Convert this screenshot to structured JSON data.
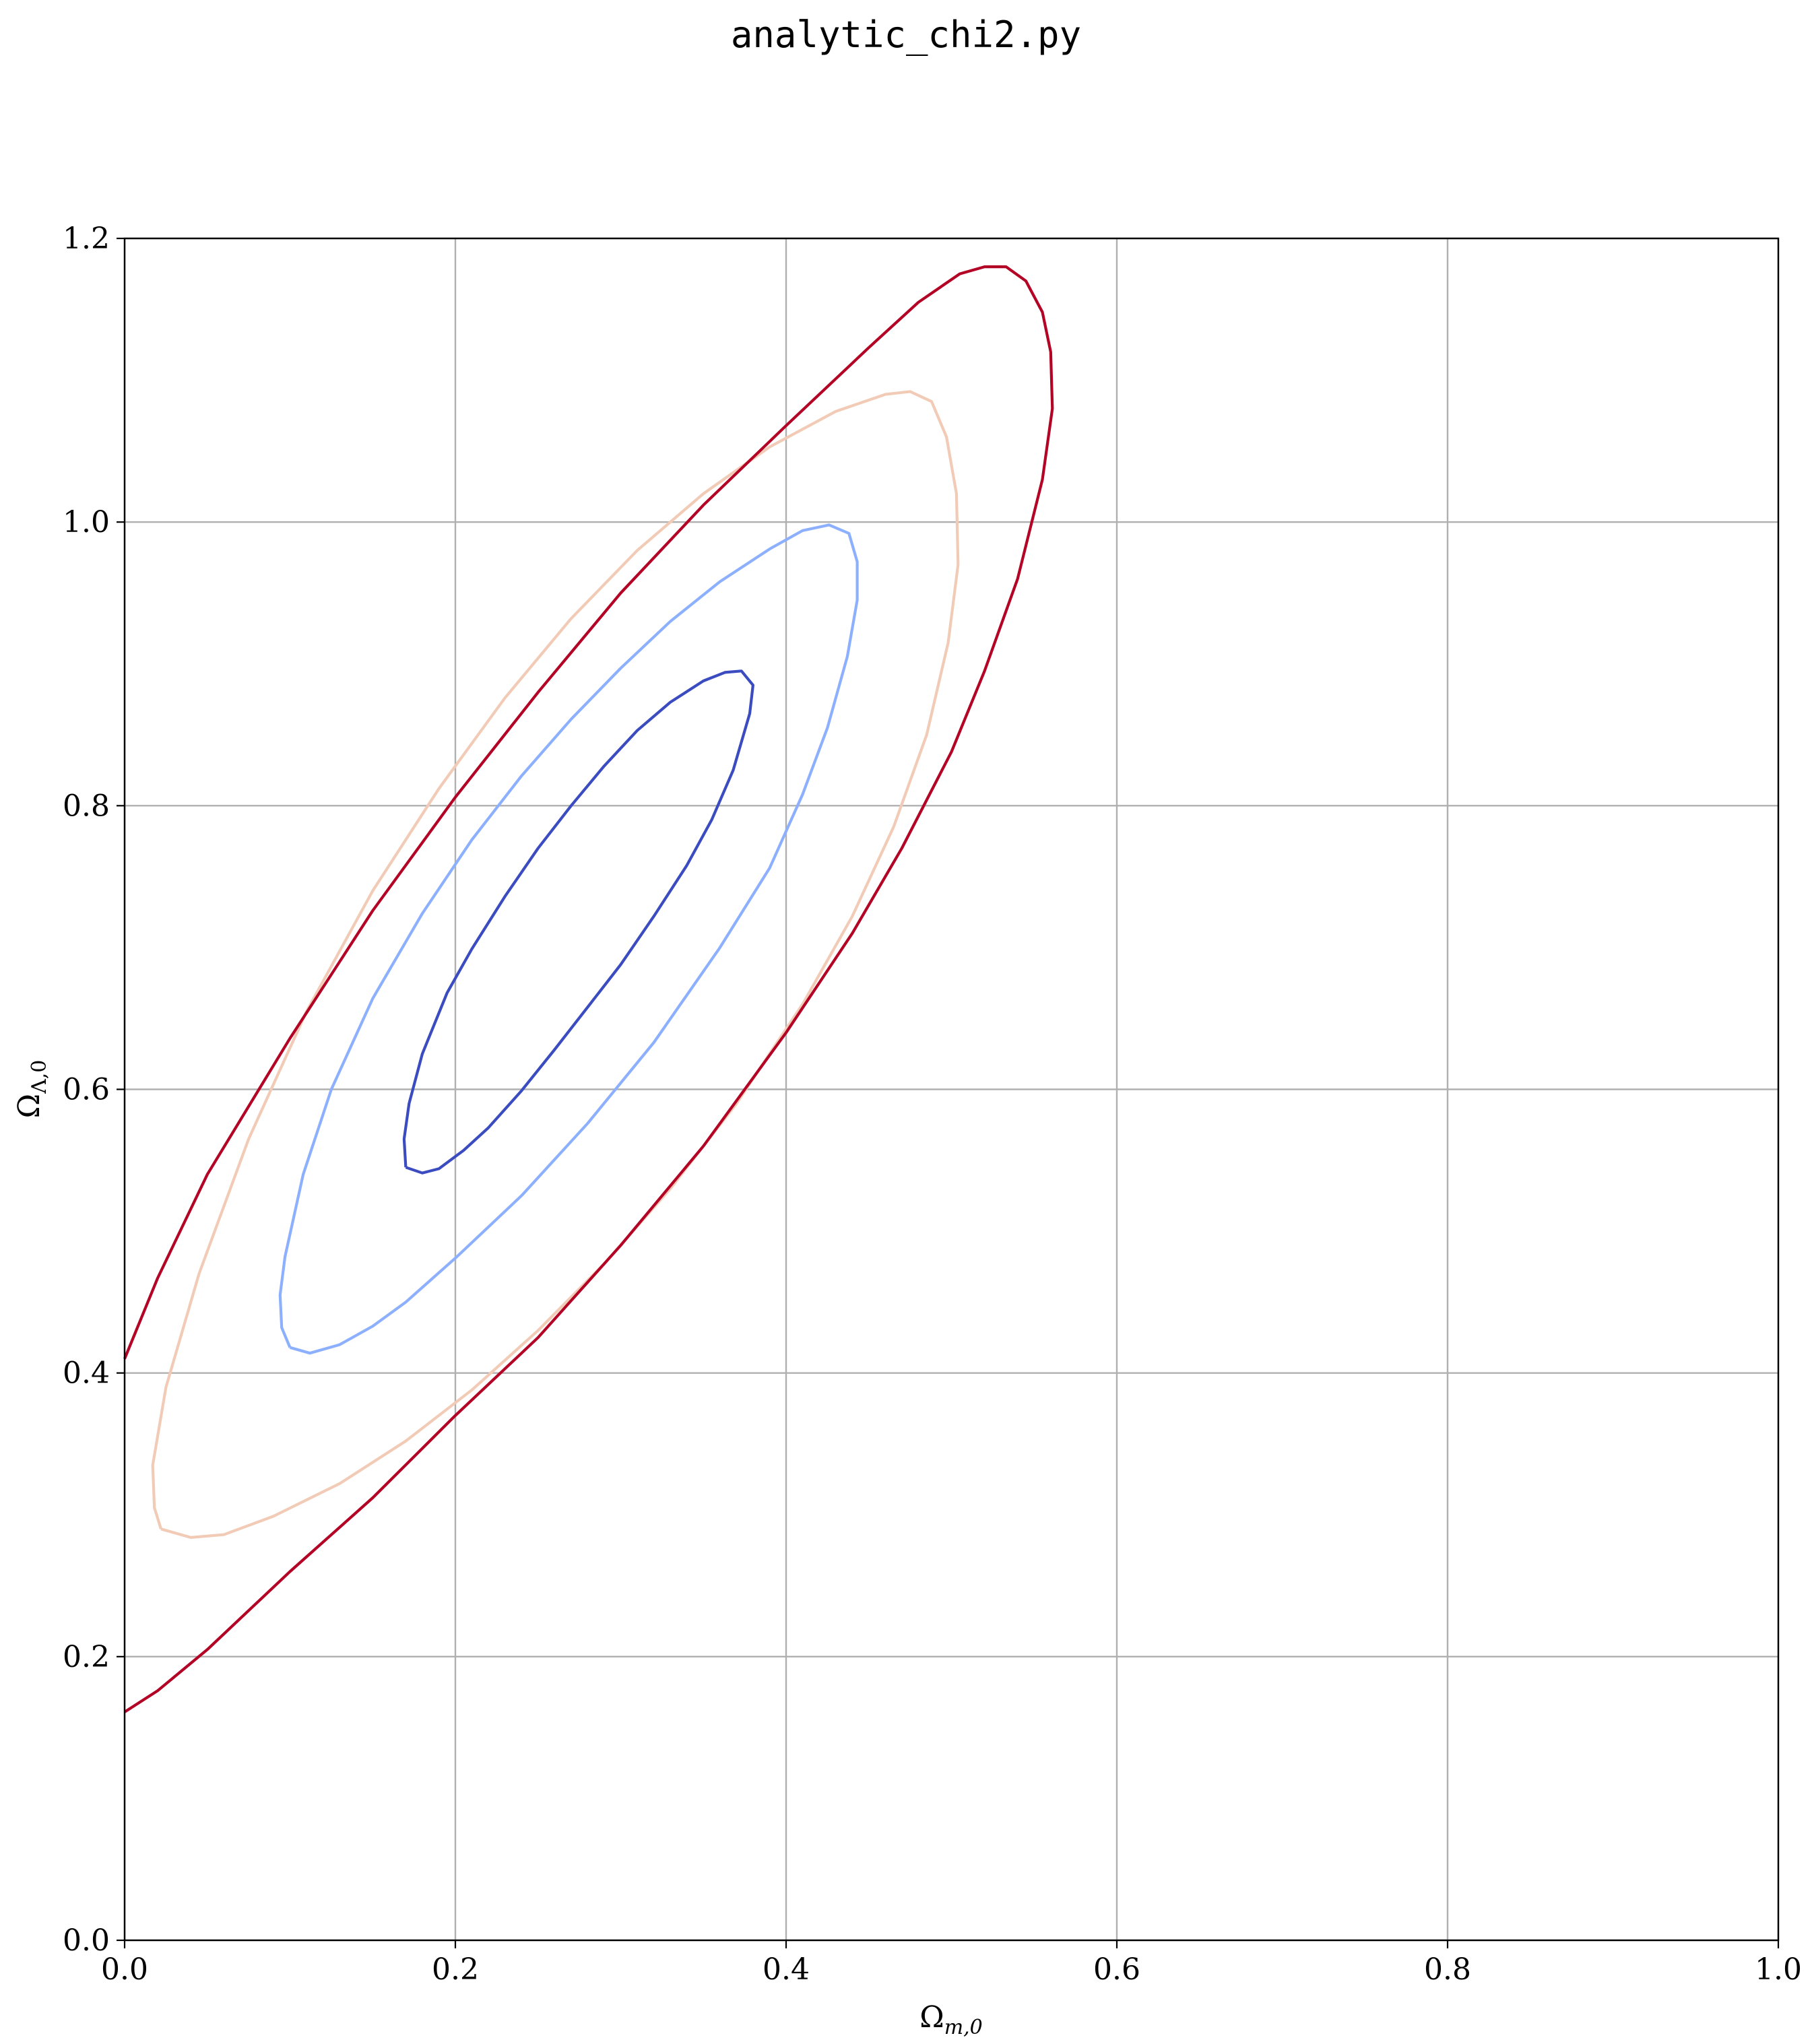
{
  "chart_data": {
    "type": "contour",
    "title": "analytic_chi2.py",
    "xlabel": "Ω",
    "xlabel_sub": "m,0",
    "ylabel": "Ω",
    "ylabel_sub": "Λ,0",
    "xlim": [
      0.0,
      1.0
    ],
    "ylim": [
      0.0,
      1.2
    ],
    "xticks": [
      "0.0",
      "0.2",
      "0.4",
      "0.6",
      "0.8",
      "1.0"
    ],
    "yticks": [
      "0.0",
      "0.2",
      "0.4",
      "0.6",
      "0.8",
      "1.0",
      "1.2"
    ],
    "xtick_values": [
      0.0,
      0.2,
      0.4,
      0.6,
      0.8,
      1.0
    ],
    "ytick_values": [
      0.0,
      0.2,
      0.4,
      0.6,
      0.8,
      1.0,
      1.2
    ],
    "grid": true,
    "colormap": "coolwarm",
    "contours": [
      {
        "level_index": 1,
        "color": "#3b4cc0",
        "points": [
          [
            0.17,
            0.545
          ],
          [
            0.18,
            0.541
          ],
          [
            0.19,
            0.544
          ],
          [
            0.205,
            0.557
          ],
          [
            0.22,
            0.573
          ],
          [
            0.24,
            0.599
          ],
          [
            0.26,
            0.628
          ],
          [
            0.28,
            0.658
          ],
          [
            0.3,
            0.688
          ],
          [
            0.32,
            0.722
          ],
          [
            0.34,
            0.758
          ],
          [
            0.355,
            0.79
          ],
          [
            0.368,
            0.825
          ],
          [
            0.378,
            0.865
          ],
          [
            0.38,
            0.885
          ],
          [
            0.373,
            0.895
          ],
          [
            0.363,
            0.894
          ],
          [
            0.35,
            0.888
          ],
          [
            0.33,
            0.873
          ],
          [
            0.31,
            0.853
          ],
          [
            0.29,
            0.828
          ],
          [
            0.27,
            0.8
          ],
          [
            0.25,
            0.77
          ],
          [
            0.23,
            0.736
          ],
          [
            0.21,
            0.699
          ],
          [
            0.195,
            0.668
          ],
          [
            0.18,
            0.625
          ],
          [
            0.172,
            0.59
          ],
          [
            0.169,
            0.565
          ],
          [
            0.17,
            0.545
          ]
        ]
      },
      {
        "level_index": 2,
        "color": "#8db0fe",
        "points": [
          [
            0.1,
            0.418
          ],
          [
            0.112,
            0.414
          ],
          [
            0.13,
            0.42
          ],
          [
            0.15,
            0.433
          ],
          [
            0.17,
            0.45
          ],
          [
            0.2,
            0.481
          ],
          [
            0.24,
            0.525
          ],
          [
            0.28,
            0.576
          ],
          [
            0.32,
            0.633
          ],
          [
            0.36,
            0.7
          ],
          [
            0.39,
            0.756
          ],
          [
            0.41,
            0.808
          ],
          [
            0.425,
            0.855
          ],
          [
            0.437,
            0.905
          ],
          [
            0.443,
            0.945
          ],
          [
            0.443,
            0.972
          ],
          [
            0.438,
            0.992
          ],
          [
            0.426,
            0.998
          ],
          [
            0.41,
            0.994
          ],
          [
            0.39,
            0.981
          ],
          [
            0.36,
            0.958
          ],
          [
            0.33,
            0.93
          ],
          [
            0.3,
            0.897
          ],
          [
            0.27,
            0.861
          ],
          [
            0.24,
            0.821
          ],
          [
            0.21,
            0.776
          ],
          [
            0.18,
            0.724
          ],
          [
            0.15,
            0.664
          ],
          [
            0.125,
            0.6
          ],
          [
            0.108,
            0.54
          ],
          [
            0.097,
            0.482
          ],
          [
            0.094,
            0.455
          ],
          [
            0.095,
            0.432
          ],
          [
            0.1,
            0.418
          ]
        ]
      },
      {
        "level_index": 3,
        "color": "#f2cbb7",
        "points": [
          [
            0.022,
            0.29
          ],
          [
            0.04,
            0.284
          ],
          [
            0.06,
            0.286
          ],
          [
            0.09,
            0.299
          ],
          [
            0.13,
            0.322
          ],
          [
            0.17,
            0.352
          ],
          [
            0.21,
            0.388
          ],
          [
            0.25,
            0.43
          ],
          [
            0.29,
            0.477
          ],
          [
            0.33,
            0.53
          ],
          [
            0.37,
            0.59
          ],
          [
            0.41,
            0.66
          ],
          [
            0.44,
            0.722
          ],
          [
            0.465,
            0.785
          ],
          [
            0.485,
            0.85
          ],
          [
            0.498,
            0.915
          ],
          [
            0.504,
            0.97
          ],
          [
            0.503,
            1.02
          ],
          [
            0.497,
            1.06
          ],
          [
            0.488,
            1.085
          ],
          [
            0.475,
            1.092
          ],
          [
            0.46,
            1.09
          ],
          [
            0.43,
            1.078
          ],
          [
            0.39,
            1.053
          ],
          [
            0.35,
            1.02
          ],
          [
            0.31,
            0.98
          ],
          [
            0.27,
            0.932
          ],
          [
            0.23,
            0.876
          ],
          [
            0.19,
            0.812
          ],
          [
            0.15,
            0.74
          ],
          [
            0.11,
            0.655
          ],
          [
            0.075,
            0.565
          ],
          [
            0.045,
            0.47
          ],
          [
            0.025,
            0.39
          ],
          [
            0.017,
            0.335
          ],
          [
            0.018,
            0.305
          ],
          [
            0.022,
            0.29
          ]
        ]
      },
      {
        "level_index": 4,
        "color": "#b40426",
        "open": true,
        "points": [
          [
            0.0,
            0.41
          ],
          [
            0.02,
            0.467
          ],
          [
            0.05,
            0.54
          ],
          [
            0.1,
            0.636
          ],
          [
            0.15,
            0.726
          ],
          [
            0.2,
            0.806
          ],
          [
            0.25,
            0.88
          ],
          [
            0.3,
            0.95
          ],
          [
            0.35,
            1.012
          ],
          [
            0.4,
            1.068
          ],
          [
            0.45,
            1.123
          ],
          [
            0.48,
            1.155
          ],
          [
            0.505,
            1.175
          ],
          [
            0.52,
            1.18
          ],
          [
            0.533,
            1.18
          ],
          [
            0.545,
            1.17
          ],
          [
            0.555,
            1.148
          ],
          [
            0.56,
            1.12
          ],
          [
            0.561,
            1.08
          ],
          [
            0.555,
            1.03
          ],
          [
            0.54,
            0.96
          ],
          [
            0.52,
            0.895
          ],
          [
            0.5,
            0.838
          ],
          [
            0.47,
            0.77
          ],
          [
            0.44,
            0.71
          ],
          [
            0.4,
            0.64
          ],
          [
            0.35,
            0.56
          ],
          [
            0.3,
            0.49
          ],
          [
            0.25,
            0.425
          ],
          [
            0.2,
            0.37
          ],
          [
            0.15,
            0.312
          ],
          [
            0.1,
            0.26
          ],
          [
            0.05,
            0.205
          ],
          [
            0.02,
            0.176
          ],
          [
            0.0,
            0.161
          ]
        ]
      }
    ]
  }
}
